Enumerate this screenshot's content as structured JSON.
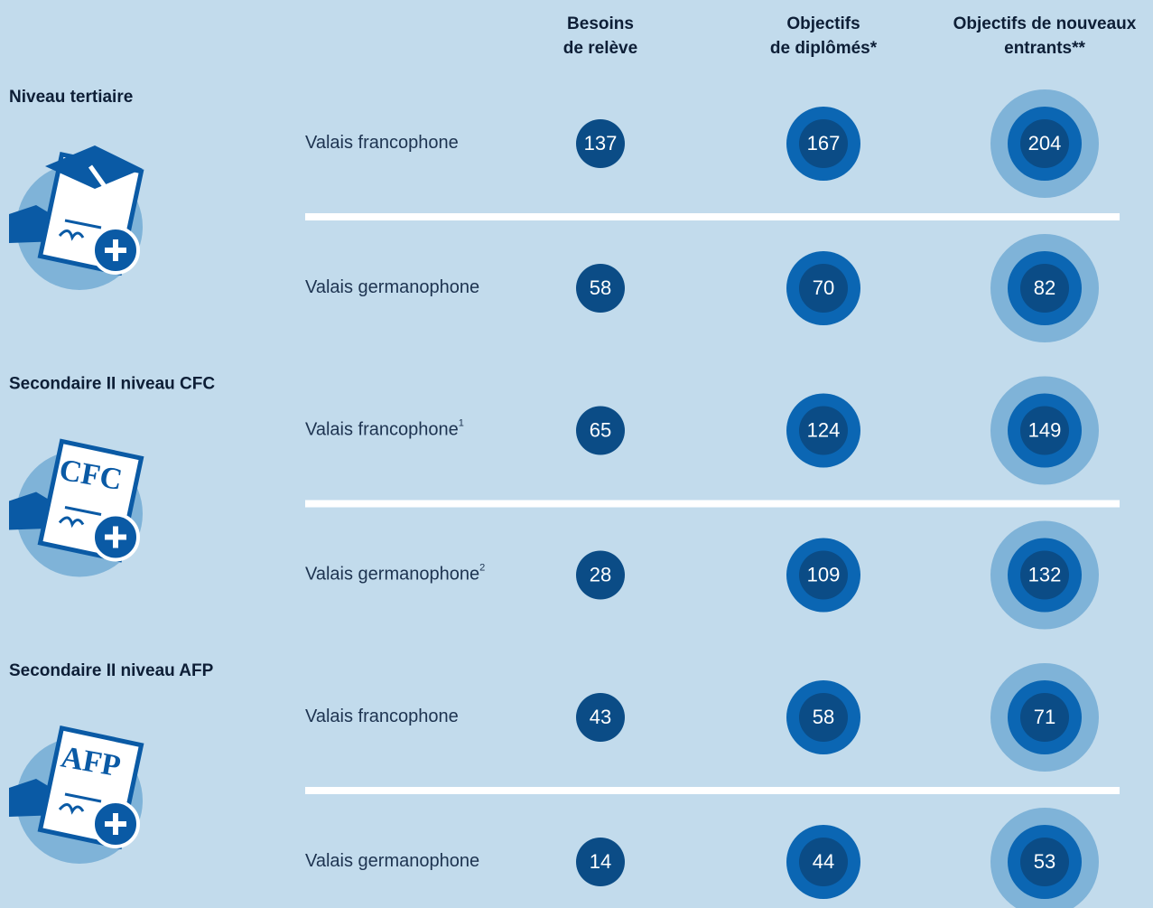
{
  "header": {
    "columns": [
      {
        "lines": [
          "Besoins",
          "de relève"
        ]
      },
      {
        "lines": [
          "Objectifs",
          "de diplômés*"
        ]
      },
      {
        "lines": [
          "Objectifs de nouveaux",
          "entrants**"
        ]
      }
    ]
  },
  "sections": [
    {
      "title": "Niveau tertiaire",
      "rows": [
        {
          "label": "Valais francophone",
          "values": [
            137,
            167,
            204
          ]
        },
        {
          "label": "Valais germanophone",
          "values": [
            58,
            70,
            82
          ]
        }
      ]
    },
    {
      "title": "Secondaire II niveau CFC",
      "icon_label": "CFC",
      "rows": [
        {
          "label": "Valais francophone",
          "note": "1",
          "values": [
            65,
            124,
            149
          ]
        },
        {
          "label": "Valais germanophone",
          "note": "2",
          "values": [
            28,
            109,
            132
          ]
        }
      ]
    },
    {
      "title": "Secondaire II niveau AFP",
      "icon_label": "AFP",
      "rows": [
        {
          "label": "Valais francophone",
          "values": [
            43,
            58,
            71
          ]
        },
        {
          "label": "Valais germanophone",
          "values": [
            14,
            44,
            53
          ]
        }
      ]
    }
  ]
}
